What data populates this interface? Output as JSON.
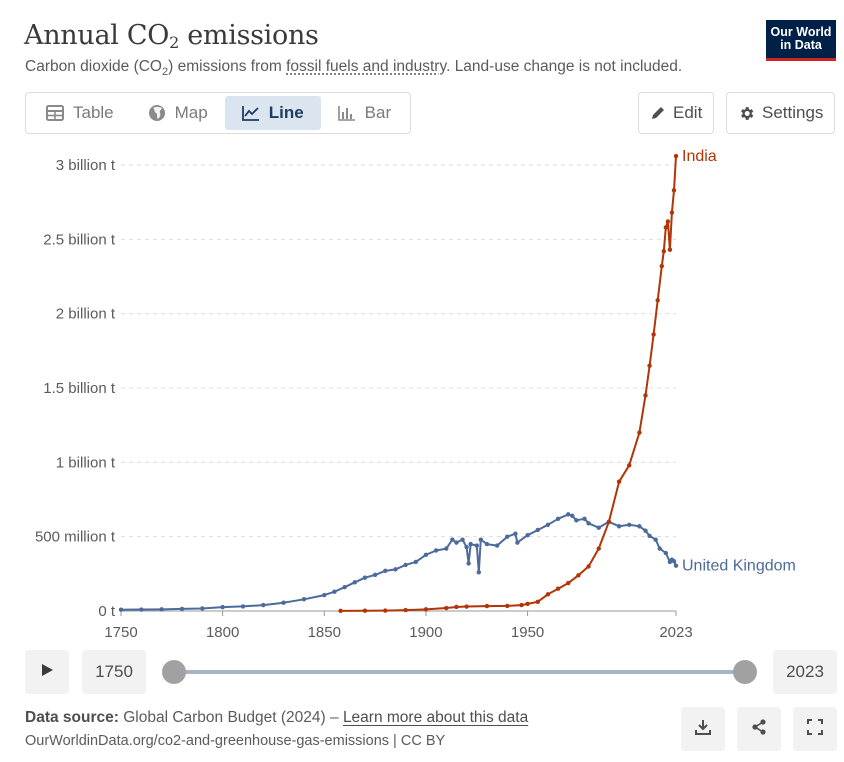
{
  "header": {
    "title_pre": "Annual CO",
    "title_sub": "2",
    "title_post": " emissions",
    "subtitle_pre": "Carbon dioxide (CO",
    "subtitle_sub": "2",
    "subtitle_mid": ") emissions from ",
    "subtitle_link": "fossil fuels and industry",
    "subtitle_post": ". Land-use change is not included.",
    "logo_line1": "Our World",
    "logo_line2": "in Data"
  },
  "tabs": [
    {
      "label": "Table",
      "icon": "table-icon"
    },
    {
      "label": "Map",
      "icon": "globe-icon"
    },
    {
      "label": "Line",
      "icon": "line-chart-icon",
      "active": true
    },
    {
      "label": "Bar",
      "icon": "bar-chart-icon"
    }
  ],
  "buttons": {
    "edit": "Edit",
    "settings": "Settings"
  },
  "timeline": {
    "start": "1750",
    "end": "2023"
  },
  "footer": {
    "source_label": "Data source:",
    "source_text": " Global Carbon Budget (2024) – ",
    "learn_more": "Learn more about this data",
    "url": "OurWorldinData.org/co2-and-greenhouse-gas-emissions | CC BY"
  },
  "colors": {
    "uk": "#4c6a9c",
    "india": "#b13507",
    "grid": "#dddddd"
  },
  "chart_data": {
    "type": "line",
    "x_ticks": [
      1750,
      1800,
      1850,
      1900,
      1950,
      2023
    ],
    "x_tick_labels": [
      "1750",
      "1800",
      "1850",
      "1900",
      "1950",
      "2023"
    ],
    "y_ticks": [
      0,
      500,
      1000,
      1500,
      2000,
      2500,
      3000
    ],
    "y_tick_labels": [
      "0 t",
      "500 million t",
      "1 billion t",
      "1.5 billion t",
      "2 billion t",
      "2.5 billion t",
      "3 billion t"
    ],
    "xlim": [
      1750,
      2023
    ],
    "ylim": [
      0,
      3000
    ],
    "y_unit": "million t",
    "series": [
      {
        "name": "United Kingdom",
        "color": "#4c6a9c",
        "points": [
          [
            1750,
            9
          ],
          [
            1760,
            10
          ],
          [
            1770,
            11
          ],
          [
            1780,
            14
          ],
          [
            1790,
            17
          ],
          [
            1800,
            26
          ],
          [
            1810,
            31
          ],
          [
            1820,
            40
          ],
          [
            1830,
            56
          ],
          [
            1840,
            79
          ],
          [
            1850,
            107
          ],
          [
            1855,
            130
          ],
          [
            1860,
            160
          ],
          [
            1865,
            193
          ],
          [
            1870,
            224
          ],
          [
            1875,
            243
          ],
          [
            1880,
            270
          ],
          [
            1885,
            280
          ],
          [
            1890,
            310
          ],
          [
            1895,
            330
          ],
          [
            1900,
            378
          ],
          [
            1905,
            407
          ],
          [
            1910,
            420
          ],
          [
            1913,
            480
          ],
          [
            1915,
            460
          ],
          [
            1918,
            480
          ],
          [
            1920,
            430
          ],
          [
            1921,
            320
          ],
          [
            1922,
            450
          ],
          [
            1925,
            440
          ],
          [
            1926,
            260
          ],
          [
            1927,
            480
          ],
          [
            1930,
            450
          ],
          [
            1935,
            440
          ],
          [
            1940,
            500
          ],
          [
            1944,
            520
          ],
          [
            1945,
            460
          ],
          [
            1950,
            510
          ],
          [
            1955,
            545
          ],
          [
            1960,
            580
          ],
          [
            1965,
            620
          ],
          [
            1970,
            650
          ],
          [
            1972,
            640
          ],
          [
            1974,
            610
          ],
          [
            1978,
            620
          ],
          [
            1980,
            590
          ],
          [
            1985,
            560
          ],
          [
            1990,
            600
          ],
          [
            1995,
            570
          ],
          [
            2000,
            580
          ],
          [
            2005,
            570
          ],
          [
            2008,
            540
          ],
          [
            2010,
            505
          ],
          [
            2013,
            480
          ],
          [
            2015,
            420
          ],
          [
            2018,
            390
          ],
          [
            2020,
            330
          ],
          [
            2021,
            345
          ],
          [
            2022,
            335
          ],
          [
            2023,
            305
          ]
        ]
      },
      {
        "name": "India",
        "color": "#b13507",
        "points": [
          [
            1858,
            1
          ],
          [
            1870,
            2
          ],
          [
            1880,
            3
          ],
          [
            1890,
            6
          ],
          [
            1900,
            11
          ],
          [
            1910,
            20
          ],
          [
            1915,
            27
          ],
          [
            1920,
            30
          ],
          [
            1930,
            33
          ],
          [
            1940,
            34
          ],
          [
            1947,
            40
          ],
          [
            1950,
            48
          ],
          [
            1955,
            62
          ],
          [
            1960,
            112
          ],
          [
            1965,
            150
          ],
          [
            1970,
            188
          ],
          [
            1975,
            240
          ],
          [
            1980,
            300
          ],
          [
            1985,
            420
          ],
          [
            1990,
            600
          ],
          [
            1995,
            870
          ],
          [
            2000,
            980
          ],
          [
            2005,
            1200
          ],
          [
            2008,
            1450
          ],
          [
            2010,
            1650
          ],
          [
            2012,
            1860
          ],
          [
            2014,
            2090
          ],
          [
            2016,
            2320
          ],
          [
            2017,
            2420
          ],
          [
            2018,
            2580
          ],
          [
            2019,
            2620
          ],
          [
            2020,
            2430
          ],
          [
            2021,
            2680
          ],
          [
            2022,
            2830
          ],
          [
            2023,
            3060
          ]
        ]
      }
    ],
    "grid": true,
    "legend": "line-end labels"
  }
}
